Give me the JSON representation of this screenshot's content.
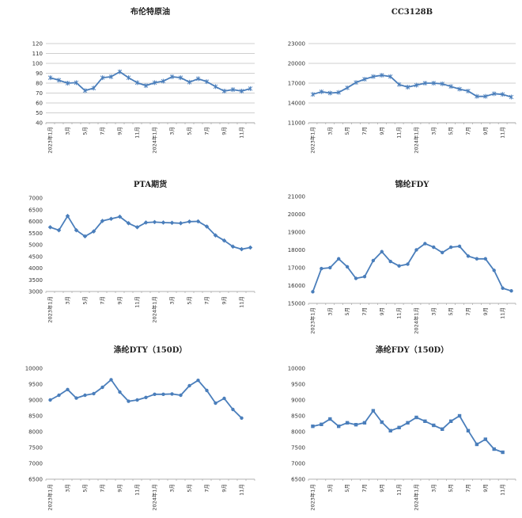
{
  "chart_data": [
    {
      "type": "line",
      "title": "布伦特原油",
      "ylim": [
        40,
        120
      ],
      "y_ticks": [
        40,
        50,
        60,
        70,
        80,
        90,
        100,
        110,
        120
      ],
      "x_tick_labels": [
        "2023年1月",
        "3月",
        "5月",
        "7月",
        "9月",
        "11月",
        "2024年1月",
        "3月",
        "5月",
        "7月",
        "9月",
        "11月"
      ],
      "grid": true,
      "marker": "star",
      "color": "#4a7ebb",
      "values": [
        85.5,
        83.0,
        80.0,
        80.5,
        72.5,
        75.0,
        85.5,
        86.5,
        91.5,
        85.5,
        80.5,
        77.5,
        80.5,
        82.0,
        86.5,
        85.5,
        81.0,
        84.5,
        81.5,
        76.5,
        72.0,
        73.5,
        72.0,
        74.5
      ]
    },
    {
      "type": "line",
      "title": "CC3128B",
      "ylim": [
        11000,
        23000
      ],
      "y_ticks": [
        11000,
        14000,
        17000,
        20000,
        23000
      ],
      "x_tick_labels": [
        "2023年1月",
        "3月",
        "5月",
        "7月",
        "9月",
        "11月",
        "2024年1月",
        "3月",
        "5月",
        "7月",
        "9月",
        "11月"
      ],
      "grid": true,
      "marker": "star",
      "color": "#4a7ebb",
      "values": [
        15300,
        15700,
        15500,
        15600,
        16300,
        17100,
        17600,
        18000,
        18200,
        18000,
        16800,
        16400,
        16700,
        17000,
        17000,
        16900,
        16500,
        16100,
        15800,
        15000,
        15000,
        15400,
        15300,
        14900
      ]
    },
    {
      "type": "line",
      "title": "PTA期货",
      "ylim": [
        3000,
        7000
      ],
      "y_ticks": [
        3000,
        3500,
        4000,
        4500,
        5000,
        5500,
        6000,
        6500,
        7000
      ],
      "x_tick_labels": [
        "2023年1月",
        "3月",
        "5月",
        "7月",
        "9月",
        "11月",
        "2024年1月",
        "3月",
        "5月",
        "7月",
        "9月",
        "11月"
      ],
      "grid": false,
      "marker": "diamond",
      "color": "#4a7ebb",
      "values": [
        5750,
        5620,
        6230,
        5620,
        5360,
        5570,
        6020,
        6110,
        6200,
        5920,
        5750,
        5950,
        5970,
        5950,
        5940,
        5920,
        5990,
        6000,
        5780,
        5400,
        5180,
        4920,
        4810,
        4880
      ]
    },
    {
      "type": "line",
      "title": "锦纶FDY",
      "ylim": [
        15000,
        21000
      ],
      "y_ticks": [
        15000,
        16000,
        17000,
        18000,
        19000,
        20000,
        21000
      ],
      "x_tick_labels": [
        "2023年1月",
        "3月",
        "5月",
        "7月",
        "9月",
        "11月",
        "2024年1月",
        "3月",
        "5月",
        "7月",
        "9月",
        "11月"
      ],
      "grid": false,
      "marker": "circle",
      "color": "#4a7ebb",
      "values": [
        15650,
        16950,
        17000,
        17500,
        17050,
        16400,
        16500,
        17400,
        17900,
        17350,
        17100,
        17200,
        18000,
        18350,
        18150,
        17850,
        18150,
        18200,
        17650,
        17500,
        17500,
        16850,
        15850,
        15700
      ]
    },
    {
      "type": "line",
      "title": "涤纶DTY（150D）",
      "ylim": [
        6500,
        10000
      ],
      "y_ticks": [
        6500,
        7000,
        7500,
        8000,
        8500,
        9000,
        9500,
        10000
      ],
      "x_tick_labels": [
        "2023年1月",
        "3月",
        "5月",
        "7月",
        "9月",
        "11月",
        "2024年1月",
        "3月",
        "5月",
        "7月",
        "9月",
        "11月"
      ],
      "grid": false,
      "marker": "circle",
      "color": "#4a7ebb",
      "values": [
        9000,
        9150,
        9330,
        9060,
        9150,
        9200,
        9400,
        9640,
        9250,
        8960,
        9000,
        9080,
        9180,
        9180,
        9190,
        9150,
        9450,
        9620,
        9300,
        8900,
        9050,
        8700,
        8430
      ]
    },
    {
      "type": "line",
      "title": "涤纶FDY（150D）",
      "ylim": [
        6500,
        10000
      ],
      "y_ticks": [
        6500,
        7000,
        7500,
        8000,
        8500,
        9000,
        9500,
        10000
      ],
      "x_tick_labels": [
        "2023年1月",
        "3月",
        "5月",
        "7月",
        "9月",
        "11月",
        "2024年1月",
        "3月",
        "5月",
        "7月",
        "9月",
        "11月"
      ],
      "grid": false,
      "marker": "square",
      "color": "#4a7ebb",
      "values": [
        8170,
        8230,
        8400,
        8170,
        8280,
        8220,
        8280,
        8660,
        8300,
        8030,
        8130,
        8280,
        8450,
        8330,
        8200,
        8080,
        8330,
        8500,
        8030,
        7600,
        7760,
        7450,
        7350
      ]
    }
  ]
}
